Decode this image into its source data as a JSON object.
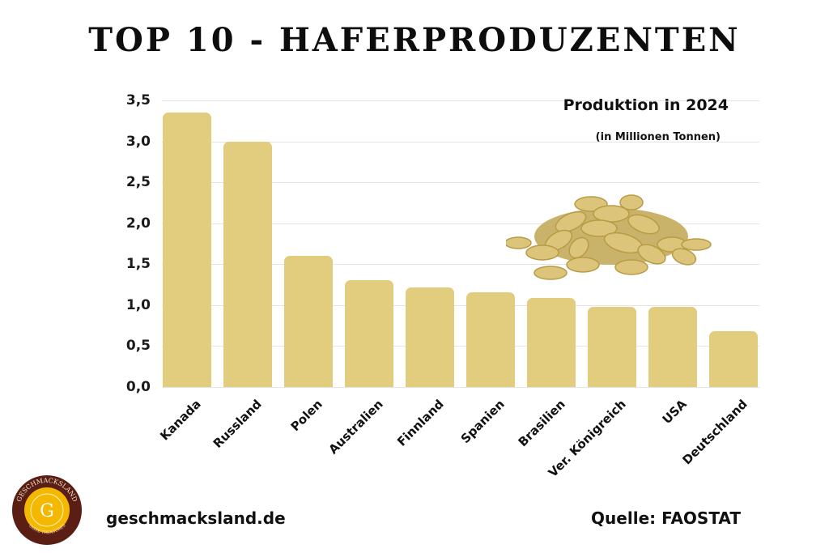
{
  "header": {
    "title": "TOP 10 - HAFERPRODUZENTEN"
  },
  "legend": {
    "title": "Produktion in 2024",
    "subtitle": "(in Millionen Tonnen)"
  },
  "footer": {
    "site": "geschmacksland.de",
    "source": "Quelle: FAOSTAT",
    "logo_text": "GESCHMACKSLAND",
    "logo_letter": "G",
    "logo_tagline": "TASTE TREASURES"
  },
  "colors": {
    "bar": "#e2cc7e",
    "grid": "#e4e4e4",
    "logo_ring": "#5a1e14",
    "logo_center": "#f5b800"
  },
  "y_ticks": [
    "0,0",
    "0,5",
    "1,0",
    "1,5",
    "2,0",
    "2,5",
    "3,0",
    "3,5"
  ],
  "chart_data": {
    "type": "bar",
    "title": "TOP 10 - HAFERPRODUZENTEN",
    "subtitle": "Produktion in 2024 (in Millionen Tonnen)",
    "categories": [
      "Kanada",
      "Russland",
      "Polen",
      "Australien",
      "Finnland",
      "Spanien",
      "Brasilien",
      "Ver. Königreich",
      "USA",
      "Deutschland"
    ],
    "values": [
      3.35,
      3.0,
      1.6,
      1.31,
      1.22,
      1.16,
      1.09,
      0.98,
      0.98,
      0.68
    ],
    "xlabel": "",
    "ylabel": "Millionen Tonnen",
    "ylim": [
      0,
      3.5
    ],
    "yticks": [
      0,
      0.5,
      1.0,
      1.5,
      2.0,
      2.5,
      3.0,
      3.5
    ],
    "grid": true,
    "legend_position": "top-right",
    "source": "FAOSTAT"
  }
}
